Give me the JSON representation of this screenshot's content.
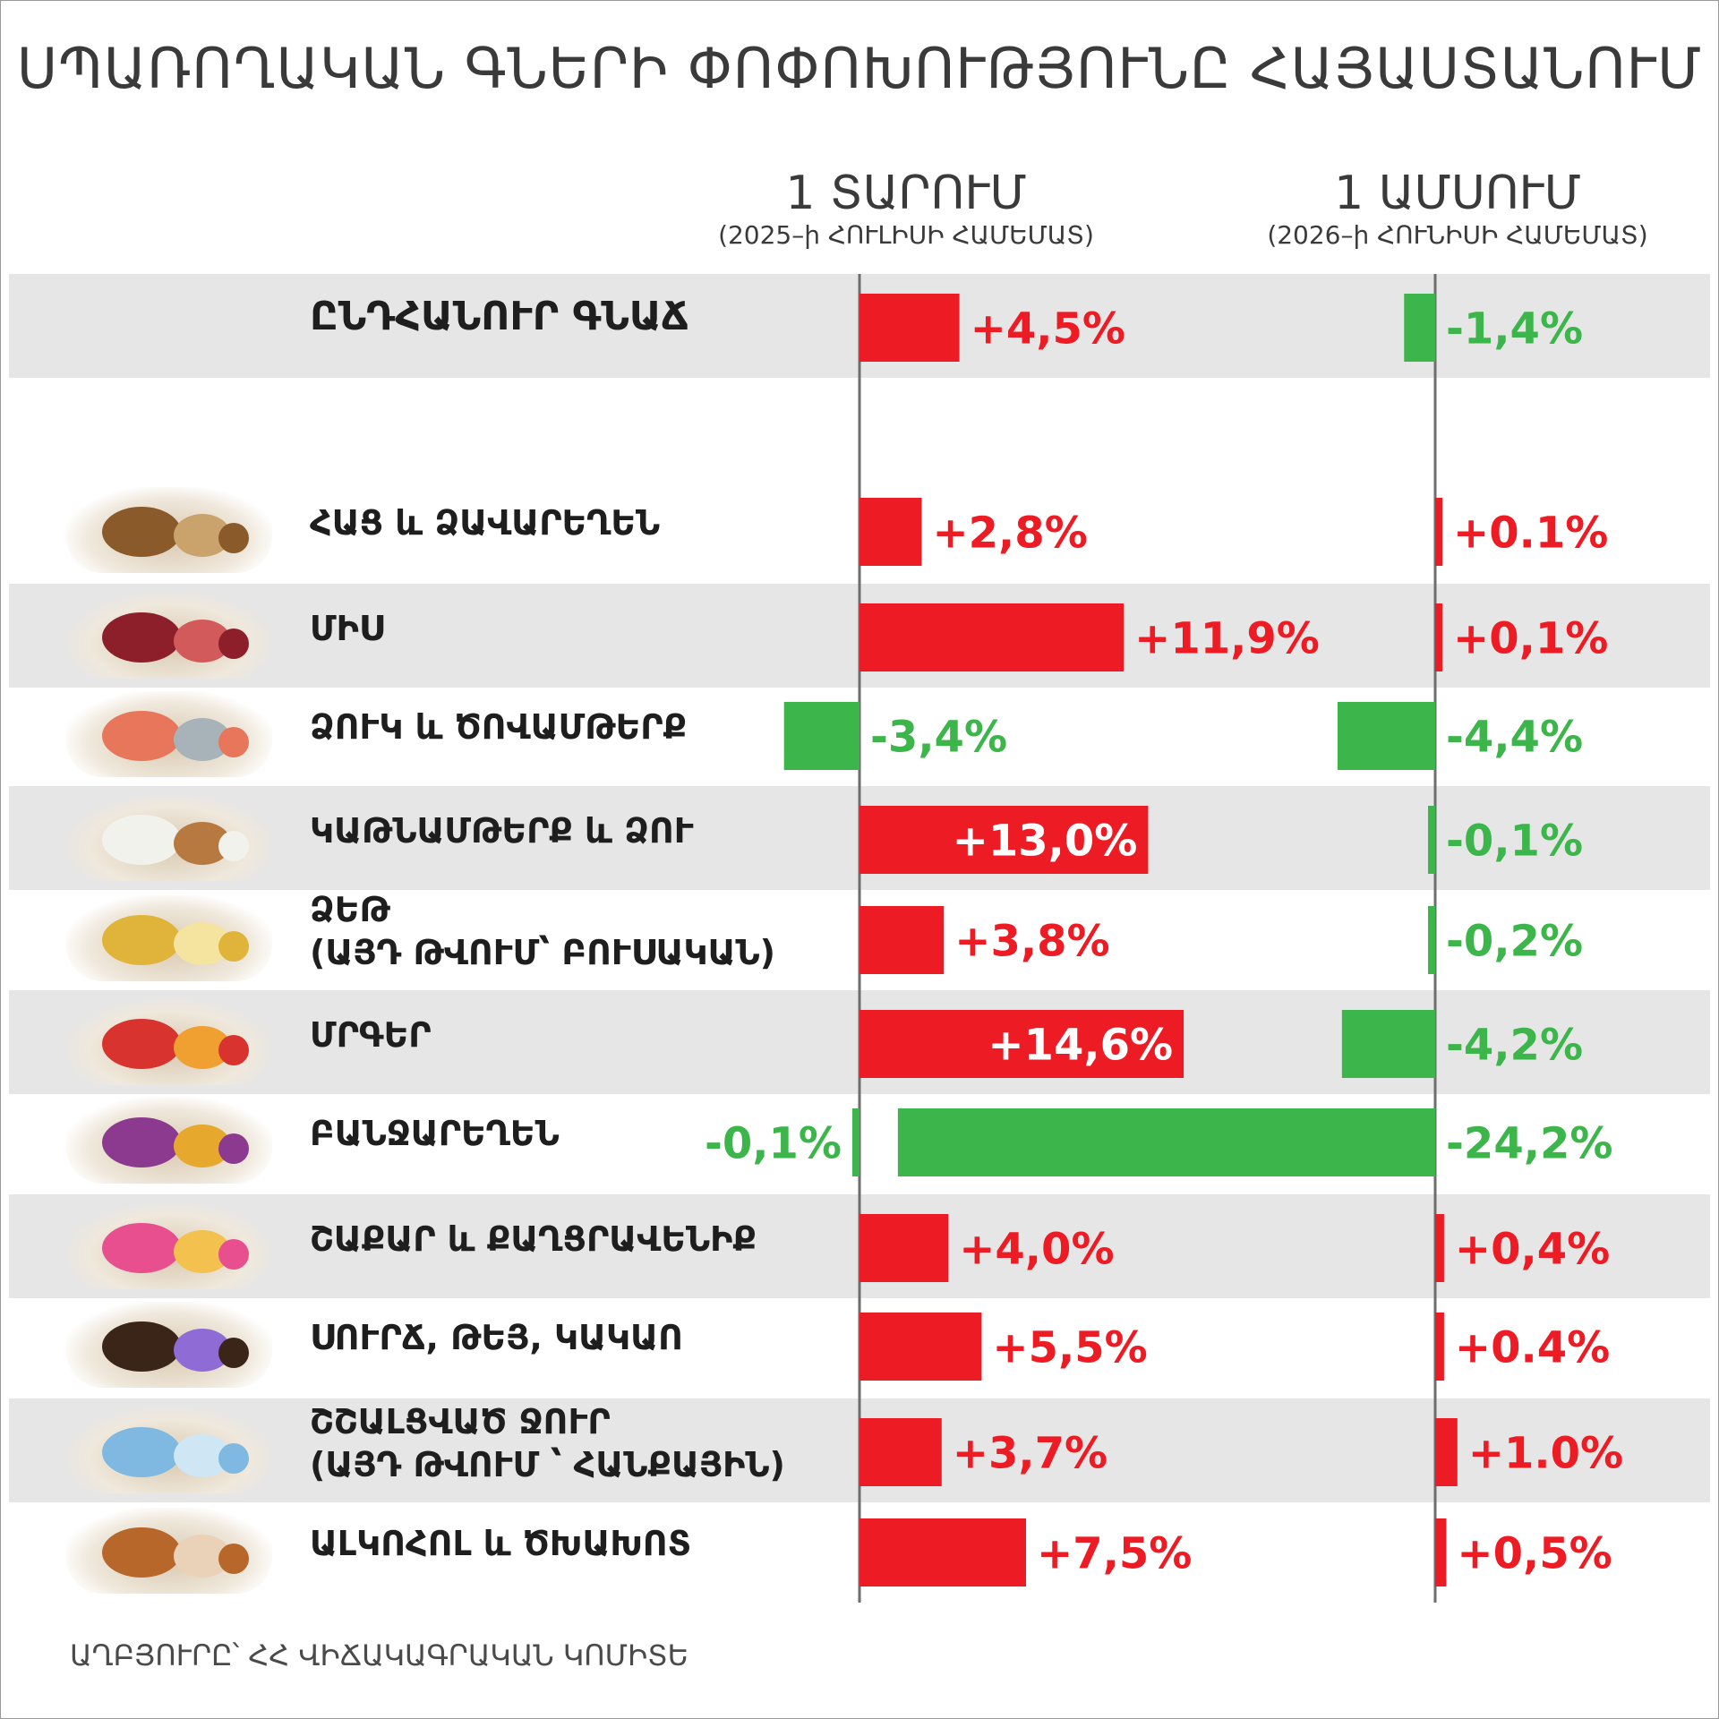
{
  "title": "ՍՊԱՌՈՂԱԿԱՆ ԳՆԵՐԻ ՓՈՓՈԽՈՒԹՅՈՒՆԸ ՀԱՅԱՍՏԱՆՈՒՄ",
  "columns": [
    {
      "title": "1 ՏԱՐՈՒՄ",
      "subtitle": "(2025–ի ՀՈՒԼԻՍԻ ՀԱՄԵՄԱՏ)"
    },
    {
      "title": "1 ԱՄՍՈՒՄ",
      "subtitle": "(2026–ի ՀՈՒՆԻՍԻ ՀԱՄԵՄԱՏ)"
    }
  ],
  "source": "ԱՂԲՅՈՒՐԸ՝ ՀՀ ՎԻՃԱԿԱԳՐԱԿԱՆ ԿՈՄԻՏԵ",
  "colors": {
    "increase": "#ed1c24",
    "decrease": "#3cb54a",
    "axis": "#6e6e6e",
    "row_shade": "#e6e6e6"
  },
  "chart_data": {
    "type": "bar",
    "orientation": "horizontal",
    "categories": [
      "ԸՆԴՀԱՆՈՒՐ ԳՆԱՃ",
      "ՀԱՑ և ՁԱՎԱՐԵՂԵՆ",
      "ՄԻՍ",
      "ՁՈՒԿ և ԾՈՎԱՄԹԵՐՔ",
      "ԿԱԹՆԱՄԹԵՐՔ և ՁՈՒ",
      "ՁԵԹ\n(ԱՅԴ ԹՎՈՒՄ՝ ԲՈՒՍԱԿԱՆ)",
      "ՄՐԳԵՐ",
      "ԲԱՆՋԱՐԵՂԵՆ",
      "ՇԱՔԱՐ և ՔԱՂՑՐԱՎԵՆԻՔ",
      "ՍՈՒՐՃ, ԹԵՅ, ԿԱԿԱՈ",
      "ՇՇԱԼՑՎԱԾ ՋՈՒՐ\n(ԱՅԴ ԹՎՈՒՄ ՝ ՀԱՆՔԱՅԻՆ)",
      "ԱԼԿՈՀՈԼ և ԾԽԱԽՈՏ"
    ],
    "series": [
      {
        "name": "1 ՏԱՐՈՒՄ",
        "values": [
          4.5,
          2.8,
          11.9,
          -3.4,
          13.0,
          3.8,
          14.6,
          -0.1,
          4.0,
          5.5,
          3.7,
          7.5
        ],
        "labels": [
          "+4,5%",
          "+2,8%",
          "+11,9%",
          "-3,4%",
          "+13,0%",
          "+3,8%",
          "+14,6%",
          "-0,1%",
          "+4,0%",
          "+5,5%",
          "+3,7%",
          "+7,5%"
        ]
      },
      {
        "name": "1 ԱՄՍՈՒՄ",
        "values": [
          -1.4,
          0.1,
          0.1,
          -4.4,
          -0.1,
          -0.2,
          -4.2,
          -24.2,
          0.4,
          0.4,
          1.0,
          0.5
        ],
        "labels": [
          "-1,4%",
          "+0.1%",
          "+0,1%",
          "-4,4%",
          "-0,1%",
          "-0,2%",
          "-4,2%",
          "-24,2%",
          "+0,4%",
          "+0.4%",
          "+1.0%",
          "+0,5%"
        ]
      }
    ]
  },
  "thumbnails": [
    "bread-image",
    "meat-image",
    "fish-image",
    "dairy-image",
    "oil-image",
    "fruit-image",
    "vegetables-image",
    "sweets-image",
    "coffee-image",
    "water-image",
    "alcohol-image"
  ]
}
